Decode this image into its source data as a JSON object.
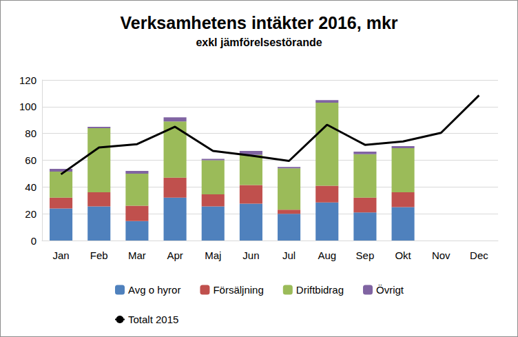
{
  "chart_data": {
    "type": "bar",
    "title": "Verksamhetens intäkter 2016, mkr",
    "subtitle": "exkl jämförelsestörande",
    "categories": [
      "Jan",
      "Feb",
      "Mar",
      "Apr",
      "Maj",
      "Jun",
      "Jul",
      "Aug",
      "Sep",
      "Okt",
      "Nov",
      "Dec"
    ],
    "stacked": true,
    "grid": true,
    "legend": "bottom",
    "ylim": [
      0,
      120
    ],
    "yticks": [
      0,
      20,
      40,
      60,
      80,
      100,
      120
    ],
    "series": [
      {
        "name": "Avg o hyror",
        "color": "#4f81bd",
        "type": "bar",
        "values": [
          24,
          25.5,
          14.5,
          32,
          25.5,
          27.5,
          20,
          28.5,
          21,
          25,
          null,
          null
        ]
      },
      {
        "name": "Försäljning",
        "color": "#c0504d",
        "type": "bar",
        "values": [
          8,
          10.5,
          11.5,
          15,
          9,
          14,
          3,
          12.5,
          11,
          11,
          null,
          null
        ]
      },
      {
        "name": "Driftbidrag",
        "color": "#9bbb59",
        "type": "bar",
        "values": [
          19.5,
          48,
          24,
          42,
          25.5,
          22.5,
          31,
          62,
          32.5,
          33,
          null,
          null
        ]
      },
      {
        "name": "Övrigt",
        "color": "#8064a2",
        "type": "bar",
        "values": [
          2,
          1,
          2,
          3,
          1,
          3,
          1,
          2,
          2,
          1.5,
          null,
          null
        ]
      },
      {
        "name": "Totalt 2015",
        "color": "#000000",
        "type": "line",
        "values": [
          49.5,
          69.5,
          72,
          85,
          67,
          63.5,
          59.5,
          86.5,
          71.5,
          74,
          80.5,
          108.5
        ]
      }
    ]
  }
}
